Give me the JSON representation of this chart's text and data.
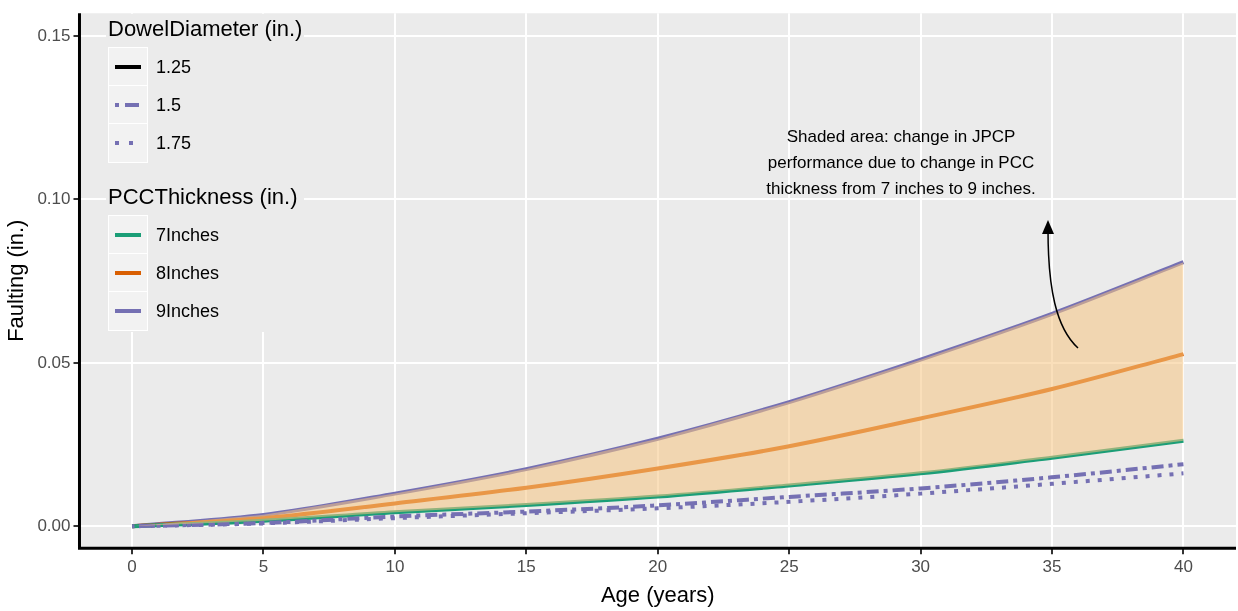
{
  "chart_data": {
    "type": "line",
    "xlabel": "Age (years)",
    "ylabel": "Faulting (in.)",
    "legend_title": "DowelDiameter (in.)",
    "x": [
      0,
      5,
      10,
      15,
      20,
      25,
      30,
      35,
      40
    ],
    "xlim": [
      -2,
      42
    ],
    "xticks": [
      0,
      5,
      10,
      15,
      20,
      25,
      30,
      35,
      40
    ],
    "ylim": [
      -0.0067,
      0.157
    ],
    "yticks": [
      {
        "value": 0,
        "label": "0.00"
      },
      0.05,
      {
        "value": 0.1,
        "label": "0.10"
      },
      0.15
    ],
    "grid": true,
    "legend": "top left",
    "series": [
      {
        "name": "1.25",
        "color": "#000000",
        "line_style": "solid",
        "values": [
          null,
          null,
          null,
          null,
          null,
          null,
          null,
          null,
          null
        ]
      },
      {
        "name": "1.5",
        "color": "#7570b3",
        "line_style": "dashed",
        "values": [
          0,
          0.001,
          0.003,
          0.0045,
          0.0064,
          0.009,
          0.0116,
          0.015,
          0.019
        ]
      },
      {
        "name": "1.75",
        "color": "#7570b3",
        "line_style": "dotted",
        "values": [
          0,
          0.0009,
          0.0025,
          0.004,
          0.0055,
          0.0075,
          0.01,
          0.013,
          0.0162
        ]
      },
      {
        "name": "7Inches",
        "color": "#1b9e77",
        "line_style": "solid",
        "values": [
          0,
          0.0017,
          0.0043,
          0.0065,
          0.0091,
          0.0125,
          0.0162,
          0.021,
          0.0262
        ]
      },
      {
        "name": "8Inches",
        "color": "#d95f02",
        "line_style": "solid",
        "values": [
          0,
          0.0025,
          0.007,
          0.0118,
          0.0177,
          0.0245,
          0.033,
          0.042,
          0.0527
        ],
        "lower": [
          0,
          0.0017,
          0.0043,
          0.0065,
          0.0091,
          0.0125,
          0.0162,
          0.021,
          0.0262
        ],
        "upper": [
          0,
          0.0035,
          0.01,
          0.0175,
          0.0268,
          0.038,
          0.051,
          0.065,
          0.0808
        ]
      },
      {
        "name": "9Inches",
        "color": "#7570b3",
        "line_style": "solid",
        "values": [
          0,
          0.0035,
          0.01,
          0.0175,
          0.0268,
          0.038,
          0.051,
          0.065,
          0.0808
        ]
      }
    ],
    "annotations": [
      "Shaded area: change in JPCP performance due to change in PCC thickness from 7 inches to 9 inches.",
      "PCCThickness (in.)"
    ]
  }
}
